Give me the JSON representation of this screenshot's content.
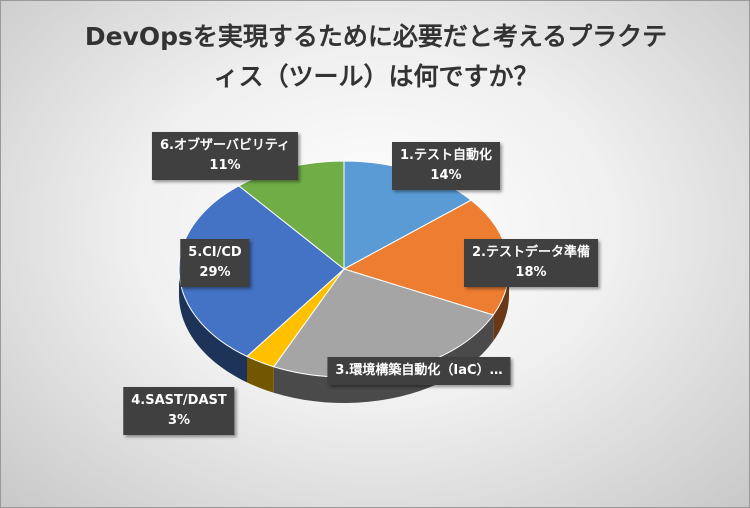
{
  "chart_data": {
    "type": "pie",
    "title": "DevOpsを実現するために必要だと考えるプラクティス（ツール）は何ですか？",
    "categories": [
      "1.テスト自動化",
      "2.テストデータ準備",
      "3.環境構築自動化（IaC）…",
      "4.SAST/DAST",
      "5.CI/CD",
      "6.オブザーバビリティ"
    ],
    "values": [
      14,
      18,
      25,
      3,
      29,
      11
    ],
    "value_labels": [
      "14%",
      "18%",
      null,
      "3%",
      "29%",
      "11%"
    ],
    "colors": [
      "#5b9bd5",
      "#ed7d31",
      "#a5a5a5",
      "#ffc000",
      "#4472c4",
      "#70ad47"
    ]
  }
}
